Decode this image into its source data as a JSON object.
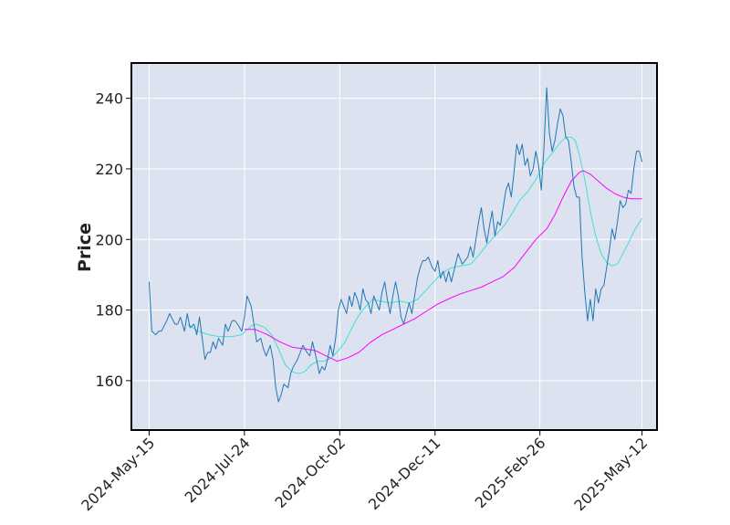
{
  "chart_data": {
    "type": "line",
    "title": "",
    "xlabel": "",
    "ylabel": "Price",
    "x_tick_labels": [
      "2024-May-15",
      "2024-Jul-24",
      "2024-Oct-02",
      "2024-Dec-11",
      "2025-Feb-26",
      "2025-May-12"
    ],
    "y_ticks": [
      160,
      180,
      200,
      220,
      240
    ],
    "ylim": [
      146,
      250
    ],
    "x_range": [
      "2024-05-02",
      "2025-05-23"
    ],
    "grid": true,
    "legend": "none",
    "colors": {
      "background": "#dde2f0",
      "grid": "#ffffff",
      "close": "#1f77b4",
      "ma_fast": "#40e0d0",
      "ma_slow": "#ff00ff",
      "frame": "#000000"
    },
    "series": [
      {
        "key": "close",
        "points": [
          [
            "2024-05-15",
            188
          ],
          [
            "2024-05-17",
            174
          ],
          [
            "2024-05-20",
            173
          ],
          [
            "2024-05-22",
            174
          ],
          [
            "2024-05-24",
            174
          ],
          [
            "2024-05-28",
            177
          ],
          [
            "2024-05-30",
            179
          ],
          [
            "2024-06-03",
            176
          ],
          [
            "2024-06-05",
            176
          ],
          [
            "2024-06-07",
            178
          ],
          [
            "2024-06-10",
            174
          ],
          [
            "2024-06-12",
            179
          ],
          [
            "2024-06-14",
            175
          ],
          [
            "2024-06-17",
            176
          ],
          [
            "2024-06-19",
            173
          ],
          [
            "2024-06-21",
            178
          ],
          [
            "2024-06-23",
            172
          ],
          [
            "2024-06-25",
            166
          ],
          [
            "2024-06-27",
            168
          ],
          [
            "2024-06-29",
            168
          ],
          [
            "2024-07-01",
            171
          ],
          [
            "2024-07-03",
            169
          ],
          [
            "2024-07-05",
            172
          ],
          [
            "2024-07-08",
            170
          ],
          [
            "2024-07-10",
            176
          ],
          [
            "2024-07-12",
            174
          ],
          [
            "2024-07-15",
            177
          ],
          [
            "2024-07-17",
            177
          ],
          [
            "2024-07-19",
            176
          ],
          [
            "2024-07-22",
            174
          ],
          [
            "2024-07-24",
            178
          ],
          [
            "2024-07-26",
            184
          ],
          [
            "2024-07-29",
            181
          ],
          [
            "2024-07-31",
            176
          ],
          [
            "2024-08-02",
            171
          ],
          [
            "2024-08-05",
            172
          ],
          [
            "2024-08-07",
            169
          ],
          [
            "2024-08-09",
            167
          ],
          [
            "2024-08-12",
            170
          ],
          [
            "2024-08-14",
            166
          ],
          [
            "2024-08-16",
            158
          ],
          [
            "2024-08-18",
            154
          ],
          [
            "2024-08-20",
            156
          ],
          [
            "2024-08-22",
            159
          ],
          [
            "2024-08-25",
            158
          ],
          [
            "2024-08-27",
            162
          ],
          [
            "2024-08-29",
            164
          ],
          [
            "2024-09-01",
            166
          ],
          [
            "2024-09-03",
            168
          ],
          [
            "2024-09-05",
            170
          ],
          [
            "2024-09-08",
            168
          ],
          [
            "2024-09-10",
            167
          ],
          [
            "2024-09-12",
            171
          ],
          [
            "2024-09-15",
            166
          ],
          [
            "2024-09-17",
            162
          ],
          [
            "2024-09-19",
            164
          ],
          [
            "2024-09-21",
            163
          ],
          [
            "2024-09-23",
            166
          ],
          [
            "2024-09-25",
            170
          ],
          [
            "2024-09-27",
            167
          ],
          [
            "2024-09-29",
            172
          ],
          [
            "2024-10-01",
            180
          ],
          [
            "2024-10-03",
            183
          ],
          [
            "2024-10-05",
            181
          ],
          [
            "2024-10-07",
            179
          ],
          [
            "2024-10-09",
            184
          ],
          [
            "2024-10-11",
            181
          ],
          [
            "2024-10-13",
            185
          ],
          [
            "2024-10-15",
            183
          ],
          [
            "2024-10-17",
            180
          ],
          [
            "2024-10-19",
            186
          ],
          [
            "2024-10-21",
            183
          ],
          [
            "2024-10-23",
            182
          ],
          [
            "2024-10-25",
            179
          ],
          [
            "2024-10-27",
            184
          ],
          [
            "2024-10-29",
            182
          ],
          [
            "2024-10-31",
            180
          ],
          [
            "2024-11-02",
            185
          ],
          [
            "2024-11-04",
            188
          ],
          [
            "2024-11-06",
            183
          ],
          [
            "2024-11-08",
            179
          ],
          [
            "2024-11-10",
            184
          ],
          [
            "2024-11-12",
            188
          ],
          [
            "2024-11-14",
            184
          ],
          [
            "2024-11-16",
            178
          ],
          [
            "2024-11-18",
            176
          ],
          [
            "2024-11-20",
            179
          ],
          [
            "2024-11-22",
            182
          ],
          [
            "2024-11-24",
            179
          ],
          [
            "2024-11-26",
            184
          ],
          [
            "2024-11-28",
            189
          ],
          [
            "2024-11-30",
            192
          ],
          [
            "2024-12-02",
            194
          ],
          [
            "2024-12-04",
            194
          ],
          [
            "2024-12-06",
            195
          ],
          [
            "2024-12-09",
            192
          ],
          [
            "2024-12-11",
            191
          ],
          [
            "2024-12-13",
            194
          ],
          [
            "2024-12-15",
            189
          ],
          [
            "2024-12-17",
            191
          ],
          [
            "2024-12-19",
            188
          ],
          [
            "2024-12-21",
            191
          ],
          [
            "2024-12-23",
            188
          ],
          [
            "2024-12-26",
            193
          ],
          [
            "2024-12-28",
            196
          ],
          [
            "2024-12-31",
            193
          ],
          [
            "2025-01-02",
            194
          ],
          [
            "2025-01-04",
            195
          ],
          [
            "2025-01-06",
            198
          ],
          [
            "2025-01-08",
            195
          ],
          [
            "2025-01-10",
            200
          ],
          [
            "2025-01-12",
            205
          ],
          [
            "2025-01-14",
            209
          ],
          [
            "2025-01-16",
            203
          ],
          [
            "2025-01-18",
            199
          ],
          [
            "2025-01-20",
            204
          ],
          [
            "2025-01-22",
            208
          ],
          [
            "2025-01-24",
            201
          ],
          [
            "2025-01-26",
            205
          ],
          [
            "2025-01-28",
            204
          ],
          [
            "2025-01-30",
            209
          ],
          [
            "2025-02-01",
            214
          ],
          [
            "2025-02-03",
            216
          ],
          [
            "2025-02-05",
            212
          ],
          [
            "2025-02-07",
            219
          ],
          [
            "2025-02-09",
            227
          ],
          [
            "2025-02-11",
            224
          ],
          [
            "2025-02-13",
            227
          ],
          [
            "2025-02-15",
            221
          ],
          [
            "2025-02-17",
            223
          ],
          [
            "2025-02-19",
            218
          ],
          [
            "2025-02-21",
            220
          ],
          [
            "2025-02-23",
            225
          ],
          [
            "2025-02-25",
            221
          ],
          [
            "2025-02-27",
            214
          ],
          [
            "2025-03-01",
            226
          ],
          [
            "2025-03-03",
            243
          ],
          [
            "2025-03-05",
            230
          ],
          [
            "2025-03-07",
            225
          ],
          [
            "2025-03-09",
            228
          ],
          [
            "2025-03-11",
            233
          ],
          [
            "2025-03-13",
            237
          ],
          [
            "2025-03-15",
            235
          ],
          [
            "2025-03-17",
            229
          ],
          [
            "2025-03-19",
            228
          ],
          [
            "2025-03-21",
            222
          ],
          [
            "2025-03-23",
            215
          ],
          [
            "2025-03-25",
            212
          ],
          [
            "2025-03-27",
            212
          ],
          [
            "2025-03-29",
            195
          ],
          [
            "2025-03-31",
            185
          ],
          [
            "2025-04-02",
            177
          ],
          [
            "2025-04-04",
            183
          ],
          [
            "2025-04-06",
            177
          ],
          [
            "2025-04-08",
            186
          ],
          [
            "2025-04-10",
            182
          ],
          [
            "2025-04-12",
            186
          ],
          [
            "2025-04-14",
            187
          ],
          [
            "2025-04-16",
            192
          ],
          [
            "2025-04-18",
            197
          ],
          [
            "2025-04-20",
            203
          ],
          [
            "2025-04-22",
            200
          ],
          [
            "2025-04-24",
            205
          ],
          [
            "2025-04-26",
            211
          ],
          [
            "2025-04-28",
            209
          ],
          [
            "2025-04-30",
            210
          ],
          [
            "2025-05-02",
            214
          ],
          [
            "2025-05-04",
            213
          ],
          [
            "2025-05-06",
            220
          ],
          [
            "2025-05-08",
            225
          ],
          [
            "2025-05-10",
            225
          ],
          [
            "2025-05-12",
            222
          ]
        ]
      },
      {
        "key": "ma_fast",
        "points": [
          [
            "2024-06-12",
            176
          ],
          [
            "2024-06-20",
            174
          ],
          [
            "2024-06-28",
            173
          ],
          [
            "2024-07-05",
            172.5
          ],
          [
            "2024-07-15",
            172.5
          ],
          [
            "2024-07-22",
            173
          ],
          [
            "2024-07-29",
            175.5
          ],
          [
            "2024-08-02",
            176
          ],
          [
            "2024-08-08",
            175
          ],
          [
            "2024-08-13",
            173
          ],
          [
            "2024-08-18",
            169
          ],
          [
            "2024-08-23",
            164.5
          ],
          [
            "2024-08-28",
            162.5
          ],
          [
            "2024-09-02",
            162
          ],
          [
            "2024-09-06",
            162.5
          ],
          [
            "2024-09-11",
            164.5
          ],
          [
            "2024-09-16",
            165.5
          ],
          [
            "2024-09-21",
            165.5
          ],
          [
            "2024-09-26",
            166.5
          ],
          [
            "2024-10-01",
            168.5
          ],
          [
            "2024-10-06",
            171
          ],
          [
            "2024-10-11",
            175
          ],
          [
            "2024-10-16",
            178.5
          ],
          [
            "2024-10-21",
            181
          ],
          [
            "2024-10-26",
            183
          ],
          [
            "2024-11-01",
            182.5
          ],
          [
            "2024-11-08",
            182
          ],
          [
            "2024-11-15",
            182.5
          ],
          [
            "2024-11-22",
            182
          ],
          [
            "2024-11-28",
            183
          ],
          [
            "2024-12-04",
            185.5
          ],
          [
            "2024-12-10",
            188
          ],
          [
            "2024-12-16",
            190.5
          ],
          [
            "2024-12-23",
            192
          ],
          [
            "2024-12-30",
            192.5
          ],
          [
            "2025-01-06",
            193
          ],
          [
            "2025-01-12",
            195.5
          ],
          [
            "2025-01-18",
            198.5
          ],
          [
            "2025-01-24",
            201
          ],
          [
            "2025-01-30",
            203.5
          ],
          [
            "2025-02-05",
            207
          ],
          [
            "2025-02-11",
            211
          ],
          [
            "2025-02-17",
            213.5
          ],
          [
            "2025-02-23",
            217
          ],
          [
            "2025-03-01",
            221.5
          ],
          [
            "2025-03-07",
            224.5
          ],
          [
            "2025-03-13",
            227.5
          ],
          [
            "2025-03-17",
            229
          ],
          [
            "2025-03-21",
            229
          ],
          [
            "2025-03-24",
            228
          ],
          [
            "2025-03-27",
            224
          ],
          [
            "2025-03-31",
            217
          ],
          [
            "2025-04-04",
            208
          ],
          [
            "2025-04-08",
            201
          ],
          [
            "2025-04-12",
            196
          ],
          [
            "2025-04-16",
            193.5
          ],
          [
            "2025-04-20",
            192.5
          ],
          [
            "2025-04-24",
            193
          ],
          [
            "2025-04-28",
            196
          ],
          [
            "2025-05-02",
            199
          ],
          [
            "2025-05-07",
            203
          ],
          [
            "2025-05-12",
            206
          ]
        ]
      },
      {
        "key": "ma_slow",
        "points": [
          [
            "2024-07-24",
            174.5
          ],
          [
            "2024-08-01",
            174.5
          ],
          [
            "2024-08-10",
            173
          ],
          [
            "2024-08-19",
            171
          ],
          [
            "2024-08-28",
            169.5
          ],
          [
            "2024-09-06",
            169
          ],
          [
            "2024-09-14",
            168.5
          ],
          [
            "2024-09-22",
            167
          ],
          [
            "2024-09-30",
            165.5
          ],
          [
            "2024-10-08",
            166.5
          ],
          [
            "2024-10-16",
            168
          ],
          [
            "2024-10-25",
            171
          ],
          [
            "2024-11-02",
            173
          ],
          [
            "2024-11-10",
            174.5
          ],
          [
            "2024-11-18",
            176
          ],
          [
            "2024-11-26",
            177.5
          ],
          [
            "2024-12-04",
            179.5
          ],
          [
            "2024-12-12",
            181.5
          ],
          [
            "2024-12-20",
            183
          ],
          [
            "2024-12-29",
            184.5
          ],
          [
            "2025-01-06",
            185.5
          ],
          [
            "2025-01-14",
            186.5
          ],
          [
            "2025-01-22",
            188
          ],
          [
            "2025-01-30",
            189.5
          ],
          [
            "2025-02-07",
            192
          ],
          [
            "2025-02-15",
            196
          ],
          [
            "2025-02-23",
            200
          ],
          [
            "2025-03-03",
            203
          ],
          [
            "2025-03-09",
            207
          ],
          [
            "2025-03-15",
            212
          ],
          [
            "2025-03-21",
            216.5
          ],
          [
            "2025-03-27",
            219
          ],
          [
            "2025-03-30",
            219.5
          ],
          [
            "2025-04-04",
            218.5
          ],
          [
            "2025-04-10",
            216.5
          ],
          [
            "2025-04-16",
            214.5
          ],
          [
            "2025-04-22",
            213
          ],
          [
            "2025-04-28",
            212
          ],
          [
            "2025-05-04",
            211.5
          ],
          [
            "2025-05-12",
            211.5
          ]
        ]
      }
    ]
  }
}
